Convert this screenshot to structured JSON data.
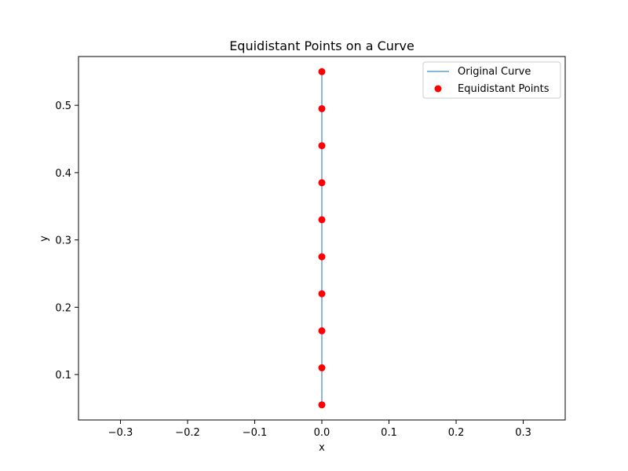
{
  "chart_data": {
    "type": "scatter",
    "title": "Equidistant Points on a Curve",
    "xlabel": "x",
    "ylabel": "y",
    "xlim": [
      -0.3625,
      0.3625
    ],
    "ylim": [
      0.0325,
      0.5725
    ],
    "xticks": [
      -0.3,
      -0.2,
      -0.1,
      0.0,
      0.1,
      0.2,
      0.3
    ],
    "xtick_labels": [
      "−0.3",
      "−0.2",
      "−0.1",
      "0.0",
      "0.1",
      "0.2",
      "0.3"
    ],
    "yticks": [
      0.1,
      0.2,
      0.3,
      0.4,
      0.5
    ],
    "ytick_labels": [
      "0.1",
      "0.2",
      "0.3",
      "0.4",
      "0.5"
    ],
    "grid": false,
    "legend_position": "top-right",
    "series": [
      {
        "name": "Original Curve",
        "kind": "line",
        "color": "#1f77b4",
        "x": [
          0,
          0
        ],
        "y": [
          0.055,
          0.55
        ]
      },
      {
        "name": "Equidistant Points",
        "kind": "scatter",
        "color": "#ff0000",
        "x": [
          0,
          0,
          0,
          0,
          0,
          0,
          0,
          0,
          0,
          0
        ],
        "y": [
          0.055,
          0.11,
          0.165,
          0.22,
          0.275,
          0.33,
          0.385,
          0.44,
          0.495,
          0.55
        ]
      }
    ]
  }
}
